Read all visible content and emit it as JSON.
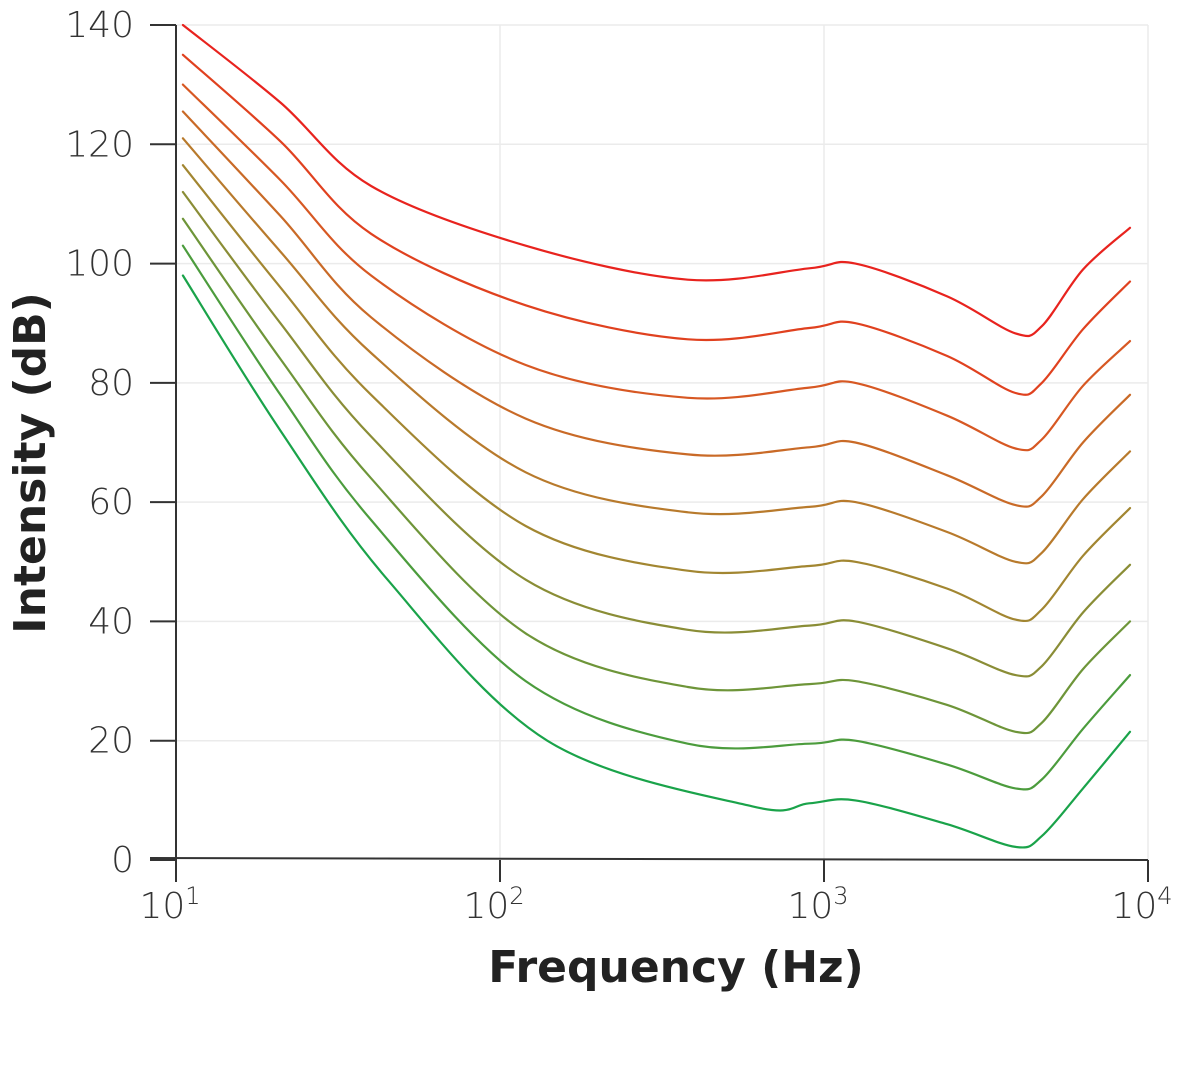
{
  "chart_data": {
    "type": "line",
    "xlabel": "Frequency (Hz)",
    "ylabel": "Intensity (dB)",
    "xscale": "log",
    "xlim": [
      10,
      10000
    ],
    "ylim": [
      0,
      140
    ],
    "grid": true,
    "x_ticks": [
      {
        "base": "10",
        "exp": "1",
        "value": 10
      },
      {
        "base": "10",
        "exp": "2",
        "value": 100
      },
      {
        "base": "10",
        "exp": "3",
        "value": 1000
      },
      {
        "base": "10",
        "exp": "4",
        "value": 10000
      }
    ],
    "y_ticks": [
      "0",
      "20",
      "40",
      "60",
      "80",
      "100",
      "120",
      "140"
    ],
    "series": [
      {
        "color": "#e8231e",
        "x": [
          10.5,
          21,
          40,
          120,
          380,
          900,
          1250,
          2400,
          3900,
          4700,
          6300,
          8800
        ],
        "y": [
          140,
          127,
          113,
          103,
          97.3,
          99.2,
          100,
          94.5,
          88.3,
          89.5,
          99,
          106
        ]
      },
      {
        "color": "#e0411f",
        "x": [
          10.5,
          21,
          40,
          120,
          380,
          900,
          1250,
          2400,
          3900,
          4700,
          6300,
          8800
        ],
        "y": [
          135,
          120.5,
          105,
          93,
          87.3,
          89.2,
          90,
          84.5,
          78.3,
          80,
          89,
          97
        ]
      },
      {
        "color": "#d75823",
        "x": [
          10.5,
          21,
          40,
          120,
          380,
          900,
          1250,
          2400,
          3900,
          4700,
          6300,
          8800
        ],
        "y": [
          130,
          114,
          98,
          83,
          77.5,
          79.2,
          80,
          74.5,
          69,
          70.5,
          79.5,
          87
        ]
      },
      {
        "color": "#c96a27",
        "x": [
          10.5,
          21,
          40,
          120,
          380,
          900,
          1250,
          2400,
          3900,
          4700,
          6300,
          8800
        ],
        "y": [
          125.5,
          108,
          91,
          74,
          68,
          69.2,
          70,
          64.5,
          59.5,
          61,
          70,
          78
        ]
      },
      {
        "color": "#b87a2c",
        "x": [
          10.5,
          21,
          40,
          120,
          380,
          900,
          1250,
          2400,
          3900,
          4700,
          6300,
          8800
        ],
        "y": [
          121,
          102,
          85,
          65,
          58.3,
          59.2,
          60,
          55,
          50,
          51.5,
          60.5,
          68.5
        ]
      },
      {
        "color": "#a28631",
        "x": [
          10.5,
          21,
          40,
          120,
          380,
          900,
          1250,
          2400,
          3900,
          4700,
          6300,
          8800
        ],
        "y": [
          116.5,
          96,
          78,
          56,
          48.5,
          49.3,
          50,
          45.5,
          40.3,
          42,
          51,
          59
        ]
      },
      {
        "color": "#8a8d36",
        "x": [
          10.5,
          21,
          40,
          120,
          380,
          900,
          1250,
          2400,
          3900,
          4700,
          6300,
          8800
        ],
        "y": [
          112,
          90,
          71,
          47,
          38.6,
          39.3,
          40,
          35.5,
          31,
          32.5,
          41.5,
          49.5
        ]
      },
      {
        "color": "#6e9539",
        "x": [
          10.5,
          21,
          40,
          120,
          380,
          900,
          1250,
          2400,
          3900,
          4700,
          6300,
          8800
        ],
        "y": [
          107.5,
          84,
          64,
          38,
          29,
          29.5,
          30,
          26,
          21.5,
          23,
          32,
          40
        ]
      },
      {
        "color": "#4c9c3d",
        "x": [
          10.5,
          21,
          40,
          120,
          380,
          900,
          1250,
          2400,
          3900,
          4700,
          6300,
          8800
        ],
        "y": [
          103,
          78,
          57,
          30,
          19.5,
          19.5,
          20,
          16,
          12,
          13.5,
          22,
          31
        ]
      },
      {
        "color": "#1aa34a",
        "x": [
          10.5,
          21,
          45,
          140,
          600,
          900,
          1250,
          2400,
          3900,
          4700,
          6300,
          8800
        ],
        "y": [
          98,
          72,
          47,
          20,
          9,
          9.5,
          10,
          6,
          2.2,
          4,
          12,
          21.5
        ]
      }
    ]
  }
}
